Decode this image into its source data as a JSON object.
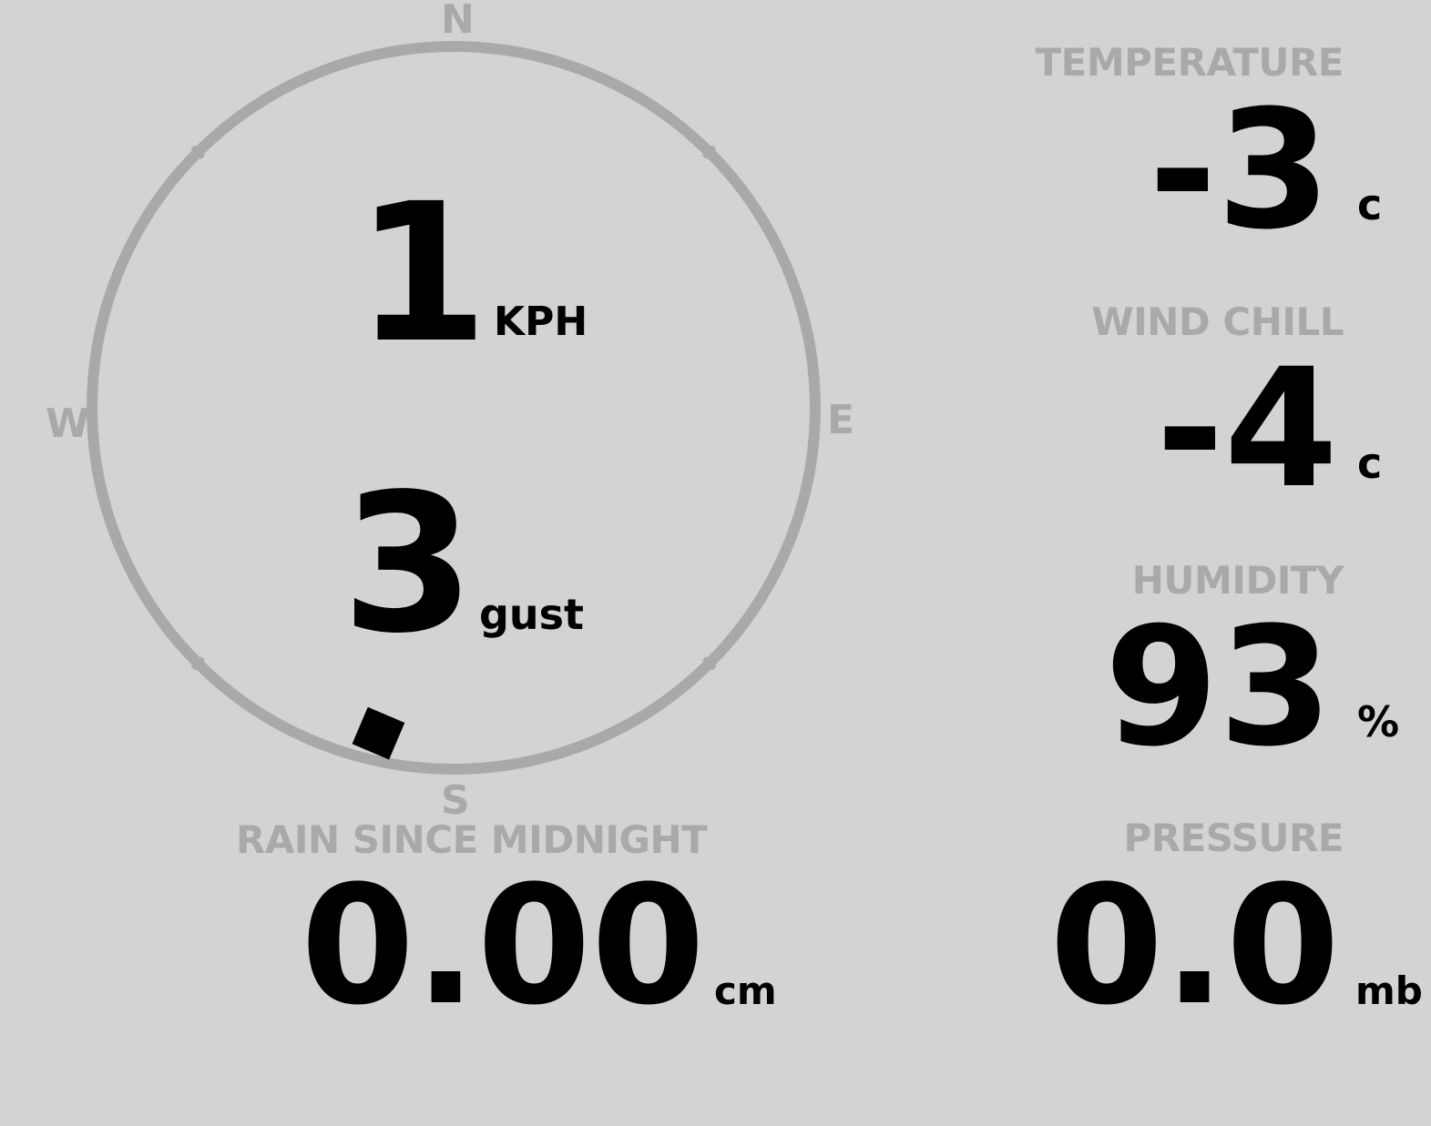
{
  "compass": {
    "labels": {
      "n": "N",
      "e": "E",
      "s": "S",
      "w": "W"
    },
    "wind_direction_deg": 193,
    "ring_color": "#a9a9a9"
  },
  "wind": {
    "speed": "1",
    "speed_unit": "KPH",
    "gust": "3",
    "gust_unit": "gust"
  },
  "rain": {
    "label": "RAIN SINCE MIDNIGHT",
    "value": "0.00",
    "unit": "cm"
  },
  "temperature": {
    "label": "TEMPERATURE",
    "value": "-3",
    "unit": "c"
  },
  "wind_chill": {
    "label": "WIND CHILL",
    "value": "-4",
    "unit": "c"
  },
  "humidity": {
    "label": "HUMIDITY",
    "value": "93",
    "unit": "%"
  },
  "pressure": {
    "label": "PRESSURE",
    "value": "0.0",
    "unit": "mb"
  },
  "colors": {
    "background": "#d3d3d3",
    "label": "#a9a9a9",
    "value": "#000000"
  }
}
